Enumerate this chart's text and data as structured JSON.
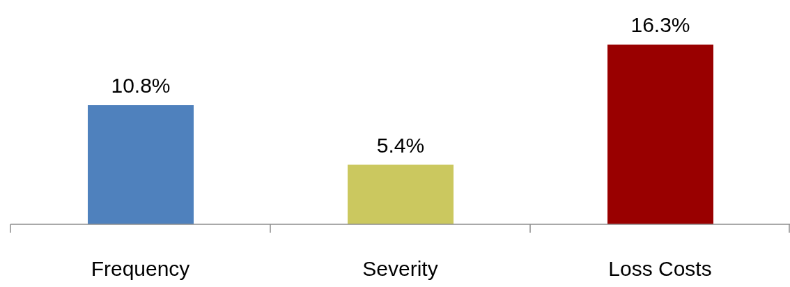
{
  "chart_data": {
    "type": "bar",
    "categories": [
      "Frequency",
      "Severity",
      "Loss Costs"
    ],
    "values": [
      10.8,
      5.4,
      16.3
    ],
    "colors": [
      "#4f81bd",
      "#cbc85f",
      "#990000"
    ],
    "value_labels": [
      "10.8%",
      "5.4%",
      "16.3%"
    ],
    "grid": false,
    "legend": false
  }
}
